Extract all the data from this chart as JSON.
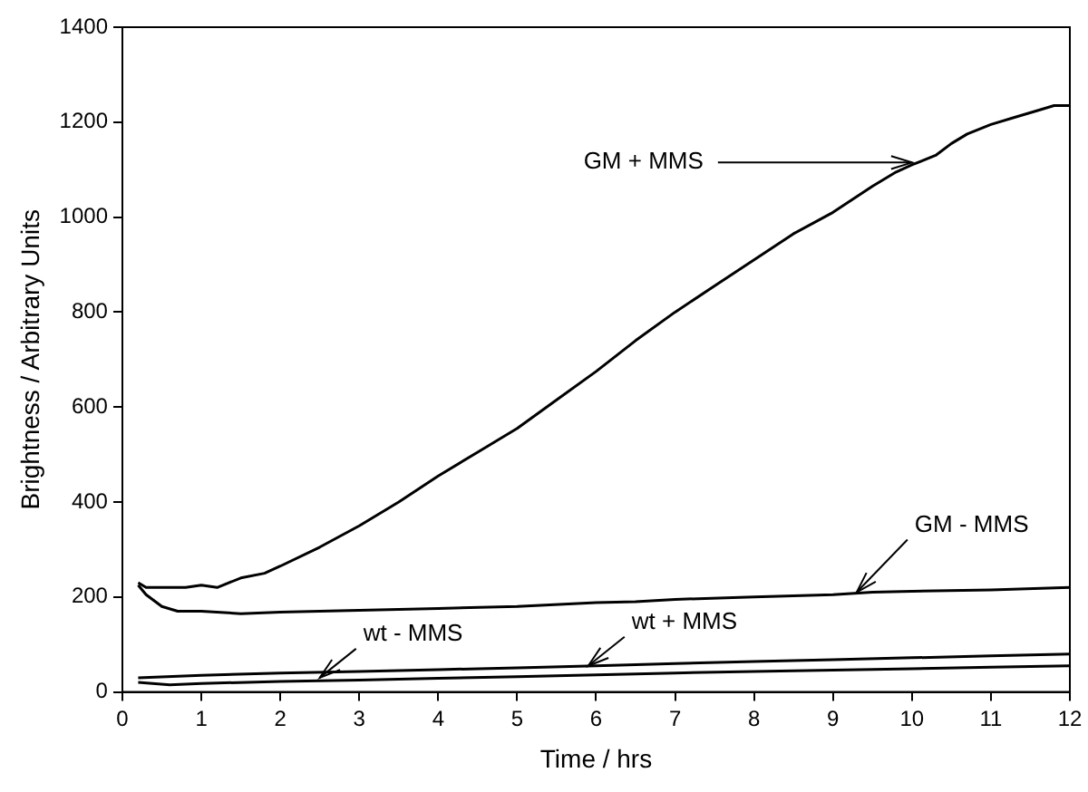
{
  "chart_data": {
    "type": "line",
    "xlabel": "Time / hrs",
    "ylabel": "Brightness / Arbitrary Units",
    "xlim": [
      0,
      12
    ],
    "xticks": [
      0,
      1,
      2,
      3,
      4,
      5,
      6,
      7,
      8,
      9,
      10,
      11,
      12
    ],
    "ylim": [
      0,
      1400
    ],
    "yticks": [
      0,
      200,
      400,
      600,
      800,
      1000,
      1200,
      1400
    ],
    "grid": false,
    "legend": false,
    "marker": "none",
    "line_style": "solid",
    "series": [
      {
        "color": "#000000",
        "x": [
          0.2,
          0.3,
          0.5,
          0.8,
          1.0,
          1.2,
          1.5,
          1.8,
          2.0,
          2.5,
          3.0,
          3.5,
          4.0,
          4.5,
          5.0,
          5.5,
          6.0,
          6.5,
          7.0,
          7.5,
          8.0,
          8.5,
          9.0,
          9.5,
          9.8,
          10.0,
          10.3,
          10.5,
          10.7,
          11.0,
          11.3,
          11.6,
          11.8,
          12.0
        ],
        "values": [
          230,
          220,
          220,
          220,
          225,
          220,
          240,
          250,
          265,
          305,
          350,
          400,
          455,
          505,
          555,
          615,
          675,
          740,
          800,
          855,
          910,
          965,
          1010,
          1065,
          1095,
          1110,
          1130,
          1155,
          1175,
          1195,
          1210,
          1225,
          1235,
          1235
        ]
      },
      {
        "color": "#000000",
        "x": [
          0.2,
          0.3,
          0.5,
          0.7,
          1.0,
          1.5,
          2.0,
          3.0,
          4.0,
          5.0,
          6.0,
          6.5,
          7.0,
          8.0,
          9.0,
          9.5,
          10.0,
          11.0,
          12.0
        ],
        "values": [
          225,
          205,
          180,
          170,
          170,
          165,
          168,
          172,
          176,
          180,
          188,
          190,
          195,
          200,
          205,
          210,
          212,
          215,
          220
        ]
      },
      {
        "color": "#000000",
        "x": [
          0.2,
          1.0,
          2.0,
          3.0,
          4.0,
          5.0,
          6.0,
          7.0,
          8.0,
          9.0,
          10.0,
          11.0,
          12.0
        ],
        "values": [
          30,
          35,
          40,
          43,
          47,
          51,
          55,
          60,
          64,
          68,
          72,
          76,
          80
        ]
      },
      {
        "color": "#000000",
        "x": [
          0.2,
          0.6,
          1.0,
          2.0,
          3.0,
          4.0,
          5.0,
          6.0,
          7.0,
          8.0,
          9.0,
          10.0,
          11.0,
          12.0
        ],
        "values": [
          20,
          15,
          18,
          22,
          25,
          29,
          32,
          36,
          40,
          43,
          46,
          49,
          52,
          55
        ]
      }
    ],
    "annotations": [
      {
        "text": "GM + MMS",
        "x": 10.0,
        "y": 1115
      },
      {
        "text": "GM - MMS",
        "x": 9.3,
        "y": 210
      },
      {
        "text": "wt - MMS",
        "x": 2.5,
        "y": 30
      },
      {
        "text": "wt + MMS",
        "x": 5.9,
        "y": 55
      }
    ]
  }
}
